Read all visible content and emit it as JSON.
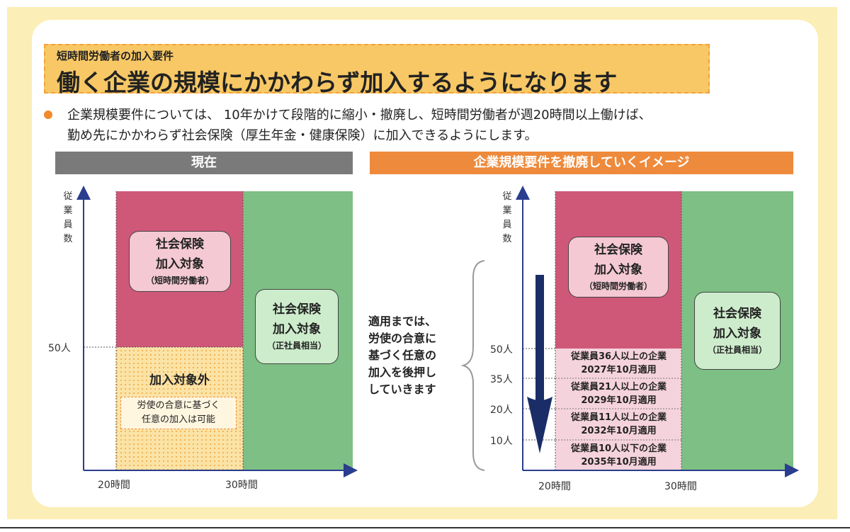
{
  "header": {
    "subtitle": "短時間労働者の加入要件",
    "title": "働く企業の規模にかかわらず加入するようになります"
  },
  "bullet": {
    "line1": "企業規模要件については、 10年かけて段階的に縮小・撤廃し、短時間労働者が週20時間以上働けば、",
    "line2": "勤め先にかかわらず社会保険（厚生年金・健康保険）に加入できるようにします。"
  },
  "colors": {
    "pink": "#cf5879",
    "green": "#7dbf84",
    "yellow_bg": "#fbeeb6",
    "orange": "#ee8a3c",
    "gray": "#7a7a7a",
    "arrow": "#1a2d66"
  },
  "left_panel": {
    "header": "現在",
    "ylabel": [
      "従",
      "業",
      "員",
      "数"
    ],
    "tick_50": "50人",
    "x_ticks": [
      "20時間",
      "30時間"
    ],
    "pink_box": {
      "line1": "社会保険",
      "line2": "加入対象",
      "line3": "（短時間労働者）"
    },
    "green_box": {
      "line1": "社会保険",
      "line2": "加入対象",
      "line3": "（正社員相当）"
    },
    "outside": {
      "title": "加入対象外",
      "note1": "労使の合意に基づく",
      "note2": "任意の加入は可能"
    }
  },
  "right_panel": {
    "header": "企業規模要件を撤廃していくイメージ",
    "ylabel": [
      "従",
      "業",
      "員",
      "数"
    ],
    "y_ticks": [
      "50人",
      "35人",
      "20人",
      "10人"
    ],
    "x_ticks": [
      "20時間",
      "30時間"
    ],
    "pink_box": {
      "line1": "社会保険",
      "line2": "加入対象",
      "line3": "（短時間労働者）"
    },
    "green_box": {
      "line1": "社会保険",
      "line2": "加入対象",
      "line3": "（正社員相当）"
    },
    "note": [
      "適用までは、",
      "労使の合意に",
      "基づく任意の",
      "加入を後押し",
      "していきます"
    ],
    "stages": [
      {
        "line1": "従業員36人以上の企業",
        "line2": "2027年10月適用"
      },
      {
        "line1": "従業員21人以上の企業",
        "line2": "2029年10月適用"
      },
      {
        "line1": "従業員11人以上の企業",
        "line2": "2032年10月適用"
      },
      {
        "line1": "従業員10人以下の企業",
        "line2": "2035年10月適用"
      }
    ]
  }
}
